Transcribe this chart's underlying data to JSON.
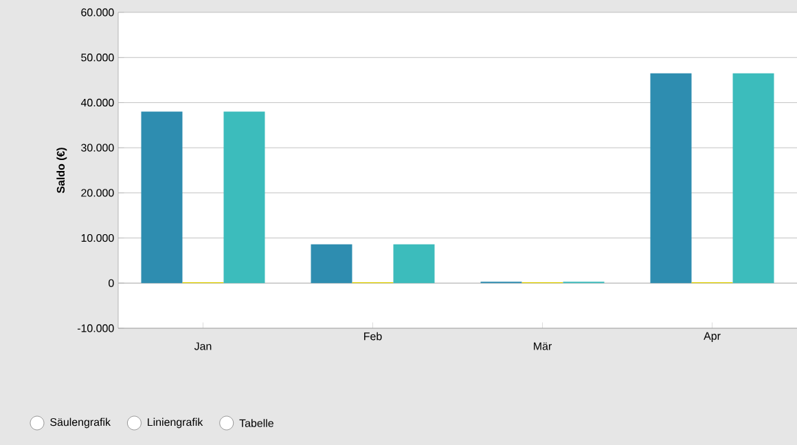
{
  "chart_data": {
    "type": "bar",
    "ylabel": "Saldo (€)",
    "categories": [
      "Jan",
      "Feb",
      "Mär",
      "Apr"
    ],
    "series": [
      {
        "color": "#2e8db0",
        "values": [
          38000,
          8600,
          300,
          46500
        ]
      },
      {
        "color": "#e3d200",
        "values": [
          200,
          200,
          200,
          200
        ]
      },
      {
        "color": "#3cbcbc",
        "values": [
          38000,
          8600,
          300,
          46500
        ]
      }
    ],
    "ylim": [
      -10000,
      60000
    ],
    "yticks": [
      {
        "value": -10000,
        "label": "-10.000"
      },
      0,
      {
        "value": 10000,
        "label": "10.000"
      },
      {
        "value": 20000,
        "label": "20.000"
      },
      {
        "value": 30000,
        "label": "30.000"
      },
      {
        "value": 40000,
        "label": "40.000"
      },
      {
        "value": 50000,
        "label": "50.000"
      },
      {
        "value": 60000,
        "label": "60.000"
      }
    ],
    "grid": "y",
    "annotations": [
      "Säulengrafik",
      "Liniengrafik",
      "Tabelle"
    ]
  }
}
